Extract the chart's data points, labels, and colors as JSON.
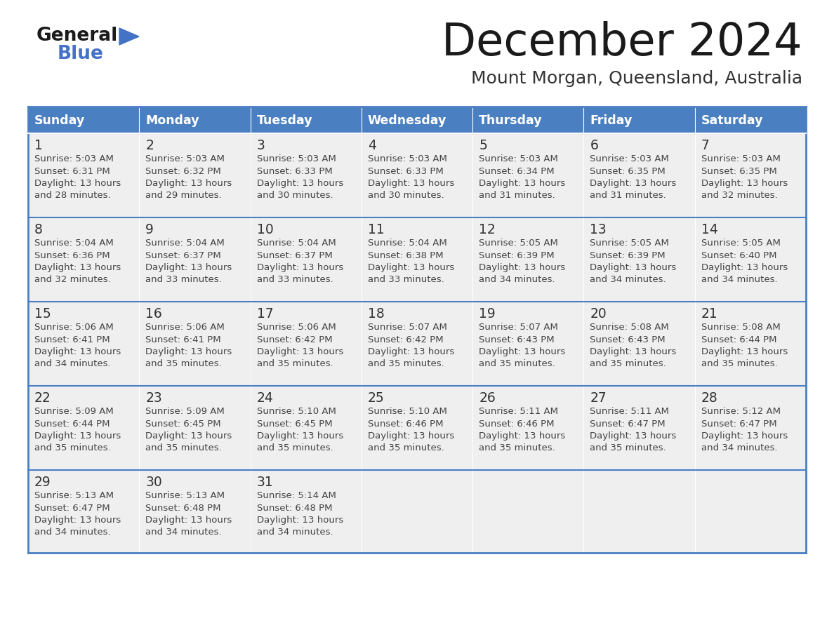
{
  "title": "December 2024",
  "subtitle": "Mount Morgan, Queensland, Australia",
  "days_of_week": [
    "Sunday",
    "Monday",
    "Tuesday",
    "Wednesday",
    "Thursday",
    "Friday",
    "Saturday"
  ],
  "header_bg": "#4a7fc1",
  "header_text": "#FFFFFF",
  "row_bg": "#EFEFEF",
  "empty_bg": "#FFFFFF",
  "border_color": "#4a7fc1",
  "day_number_color": "#333333",
  "text_color": "#444444",
  "weeks": [
    [
      {
        "day": 1,
        "sunrise": "5:03 AM",
        "sunset": "6:31 PM",
        "daylight_hours": 13,
        "daylight_minutes": 28
      },
      {
        "day": 2,
        "sunrise": "5:03 AM",
        "sunset": "6:32 PM",
        "daylight_hours": 13,
        "daylight_minutes": 29
      },
      {
        "day": 3,
        "sunrise": "5:03 AM",
        "sunset": "6:33 PM",
        "daylight_hours": 13,
        "daylight_minutes": 30
      },
      {
        "day": 4,
        "sunrise": "5:03 AM",
        "sunset": "6:33 PM",
        "daylight_hours": 13,
        "daylight_minutes": 30
      },
      {
        "day": 5,
        "sunrise": "5:03 AM",
        "sunset": "6:34 PM",
        "daylight_hours": 13,
        "daylight_minutes": 31
      },
      {
        "day": 6,
        "sunrise": "5:03 AM",
        "sunset": "6:35 PM",
        "daylight_hours": 13,
        "daylight_minutes": 31
      },
      {
        "day": 7,
        "sunrise": "5:03 AM",
        "sunset": "6:35 PM",
        "daylight_hours": 13,
        "daylight_minutes": 32
      }
    ],
    [
      {
        "day": 8,
        "sunrise": "5:04 AM",
        "sunset": "6:36 PM",
        "daylight_hours": 13,
        "daylight_minutes": 32
      },
      {
        "day": 9,
        "sunrise": "5:04 AM",
        "sunset": "6:37 PM",
        "daylight_hours": 13,
        "daylight_minutes": 33
      },
      {
        "day": 10,
        "sunrise": "5:04 AM",
        "sunset": "6:37 PM",
        "daylight_hours": 13,
        "daylight_minutes": 33
      },
      {
        "day": 11,
        "sunrise": "5:04 AM",
        "sunset": "6:38 PM",
        "daylight_hours": 13,
        "daylight_minutes": 33
      },
      {
        "day": 12,
        "sunrise": "5:05 AM",
        "sunset": "6:39 PM",
        "daylight_hours": 13,
        "daylight_minutes": 34
      },
      {
        "day": 13,
        "sunrise": "5:05 AM",
        "sunset": "6:39 PM",
        "daylight_hours": 13,
        "daylight_minutes": 34
      },
      {
        "day": 14,
        "sunrise": "5:05 AM",
        "sunset": "6:40 PM",
        "daylight_hours": 13,
        "daylight_minutes": 34
      }
    ],
    [
      {
        "day": 15,
        "sunrise": "5:06 AM",
        "sunset": "6:41 PM",
        "daylight_hours": 13,
        "daylight_minutes": 34
      },
      {
        "day": 16,
        "sunrise": "5:06 AM",
        "sunset": "6:41 PM",
        "daylight_hours": 13,
        "daylight_minutes": 35
      },
      {
        "day": 17,
        "sunrise": "5:06 AM",
        "sunset": "6:42 PM",
        "daylight_hours": 13,
        "daylight_minutes": 35
      },
      {
        "day": 18,
        "sunrise": "5:07 AM",
        "sunset": "6:42 PM",
        "daylight_hours": 13,
        "daylight_minutes": 35
      },
      {
        "day": 19,
        "sunrise": "5:07 AM",
        "sunset": "6:43 PM",
        "daylight_hours": 13,
        "daylight_minutes": 35
      },
      {
        "day": 20,
        "sunrise": "5:08 AM",
        "sunset": "6:43 PM",
        "daylight_hours": 13,
        "daylight_minutes": 35
      },
      {
        "day": 21,
        "sunrise": "5:08 AM",
        "sunset": "6:44 PM",
        "daylight_hours": 13,
        "daylight_minutes": 35
      }
    ],
    [
      {
        "day": 22,
        "sunrise": "5:09 AM",
        "sunset": "6:44 PM",
        "daylight_hours": 13,
        "daylight_minutes": 35
      },
      {
        "day": 23,
        "sunrise": "5:09 AM",
        "sunset": "6:45 PM",
        "daylight_hours": 13,
        "daylight_minutes": 35
      },
      {
        "day": 24,
        "sunrise": "5:10 AM",
        "sunset": "6:45 PM",
        "daylight_hours": 13,
        "daylight_minutes": 35
      },
      {
        "day": 25,
        "sunrise": "5:10 AM",
        "sunset": "6:46 PM",
        "daylight_hours": 13,
        "daylight_minutes": 35
      },
      {
        "day": 26,
        "sunrise": "5:11 AM",
        "sunset": "6:46 PM",
        "daylight_hours": 13,
        "daylight_minutes": 35
      },
      {
        "day": 27,
        "sunrise": "5:11 AM",
        "sunset": "6:47 PM",
        "daylight_hours": 13,
        "daylight_minutes": 35
      },
      {
        "day": 28,
        "sunrise": "5:12 AM",
        "sunset": "6:47 PM",
        "daylight_hours": 13,
        "daylight_minutes": 34
      }
    ],
    [
      {
        "day": 29,
        "sunrise": "5:13 AM",
        "sunset": "6:47 PM",
        "daylight_hours": 13,
        "daylight_minutes": 34
      },
      {
        "day": 30,
        "sunrise": "5:13 AM",
        "sunset": "6:48 PM",
        "daylight_hours": 13,
        "daylight_minutes": 34
      },
      {
        "day": 31,
        "sunrise": "5:14 AM",
        "sunset": "6:48 PM",
        "daylight_hours": 13,
        "daylight_minutes": 34
      },
      null,
      null,
      null,
      null
    ]
  ]
}
